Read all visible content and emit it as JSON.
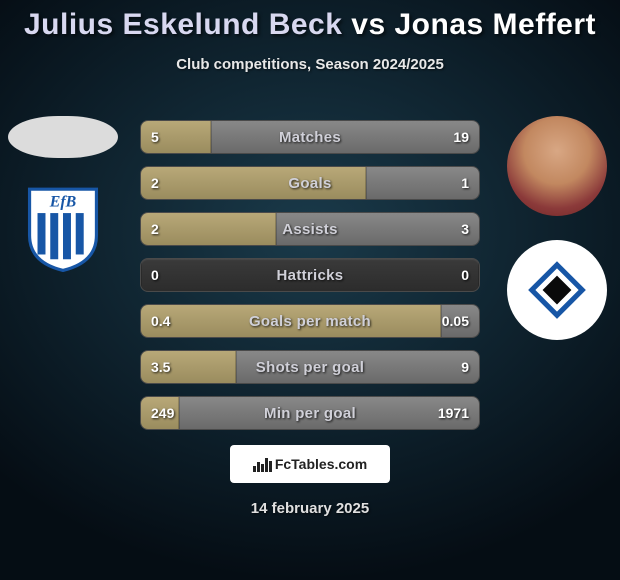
{
  "title": {
    "player1": "Julius Eskelund Beck",
    "vs": "vs",
    "player2": "Jonas Meffert"
  },
  "subtitle": "Club competitions, Season 2024/2025",
  "theme": {
    "bg_center": "#1a3a4a",
    "bg_mid": "#0d1f2a",
    "bg_edge": "#050d14",
    "bar_track_top": "#3a3a3a",
    "bar_track_bottom": "#2c2c2c",
    "bar_left_top": "#b8a878",
    "bar_left_bottom": "#9a8c5e",
    "bar_right_top": "#888888",
    "bar_right_bottom": "#6a6a6a",
    "text_main": "#ffffff",
    "text_dim": "#d0d0d8"
  },
  "left_club": {
    "name": "Esbjerg fB",
    "logo_colors": {
      "shield": "#ffffff",
      "stripes": "#1756a6",
      "text": "#1756a6"
    }
  },
  "right_club": {
    "name": "Hamburger SV",
    "logo_colors": {
      "outer": "#1756a6",
      "mid": "#ffffff",
      "inner": "#0a0a0a"
    }
  },
  "rows": [
    {
      "label": "Matches",
      "left": "5",
      "right": "19",
      "left_pct": 20.8,
      "right_pct": 79.2
    },
    {
      "label": "Goals",
      "left": "2",
      "right": "1",
      "left_pct": 66.7,
      "right_pct": 33.3
    },
    {
      "label": "Assists",
      "left": "2",
      "right": "3",
      "left_pct": 40.0,
      "right_pct": 60.0
    },
    {
      "label": "Hattricks",
      "left": "0",
      "right": "0",
      "left_pct": 0.0,
      "right_pct": 0.0
    },
    {
      "label": "Goals per match",
      "left": "0.4",
      "right": "0.05",
      "left_pct": 88.9,
      "right_pct": 11.1
    },
    {
      "label": "Shots per goal",
      "left": "3.5",
      "right": "9",
      "left_pct": 28.0,
      "right_pct": 72.0
    },
    {
      "label": "Min per goal",
      "left": "249",
      "right": "1971",
      "left_pct": 11.2,
      "right_pct": 88.8
    }
  ],
  "footer": {
    "brand": "FcTables.com",
    "date": "14 february 2025"
  }
}
